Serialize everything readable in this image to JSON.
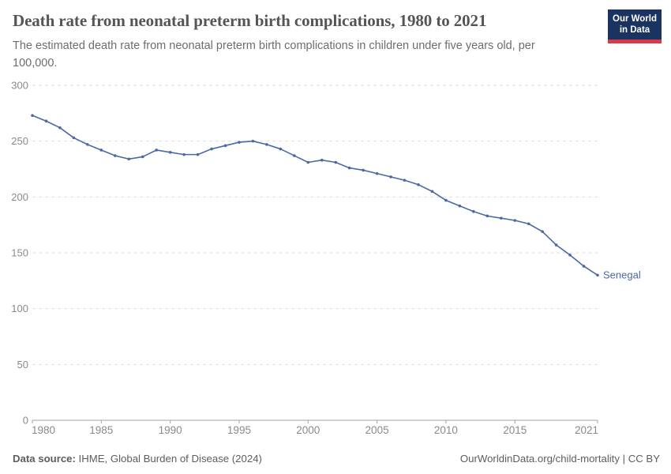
{
  "header": {
    "title": "Death rate from neonatal preterm birth complications, 1980 to 2021",
    "subtitle_lines": [
      "The estimated death rate from neonatal preterm birth complications in children under five years old, per",
      "100,000."
    ],
    "logo": {
      "line1": "Our World",
      "line2": "in Data"
    }
  },
  "chart_data": {
    "type": "line",
    "title": "Death rate from neonatal preterm birth complications, 1980 to 2021",
    "xlabel": "",
    "ylabel": "",
    "x": [
      1980,
      1981,
      1982,
      1983,
      1984,
      1985,
      1986,
      1987,
      1988,
      1989,
      1990,
      1991,
      1992,
      1993,
      1994,
      1995,
      1996,
      1997,
      1998,
      1999,
      2000,
      2001,
      2002,
      2003,
      2004,
      2005,
      2006,
      2007,
      2008,
      2009,
      2010,
      2011,
      2012,
      2013,
      2014,
      2015,
      2016,
      2017,
      2018,
      2019,
      2020,
      2021
    ],
    "series": [
      {
        "name": "Senegal",
        "color": "#4B69A5",
        "values": [
          273,
          268,
          262,
          253,
          247,
          242,
          237,
          234,
          236,
          242,
          240,
          238,
          238,
          243,
          246,
          249,
          250,
          247,
          243,
          237,
          231,
          233,
          231,
          226,
          224,
          221,
          218,
          215,
          211,
          205,
          197,
          192,
          187,
          183,
          181,
          179,
          176,
          169,
          157,
          148,
          138,
          130
        ]
      }
    ],
    "ylim": [
      0,
      300
    ],
    "yticks": [
      0,
      50,
      100,
      150,
      200,
      250,
      300
    ],
    "xticks": [
      1980,
      1985,
      1990,
      1995,
      2000,
      2005,
      2010,
      2015,
      2021
    ],
    "grid": "horizontal-dashed",
    "legend_position": "end-of-line-label"
  },
  "footer": {
    "datasource_label": "Data source:",
    "datasource_value": " IHME, Global Burden of Disease (2024)",
    "credit": "OurWorldinData.org/child-mortality | CC BY"
  },
  "colors": {
    "line": "#4B69A5",
    "grid": "#dedede",
    "axis": "#a3a3a3",
    "tick_text": "#8a8a8a",
    "logo_bg": "#1a3360",
    "logo_stripe": "#d93a4a"
  }
}
